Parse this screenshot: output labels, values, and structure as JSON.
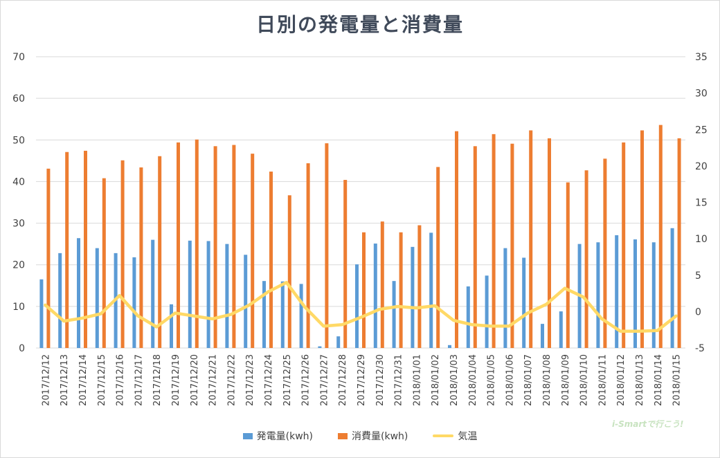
{
  "title": "日別の発電量と消費量",
  "watermark": "i-Smartで行こう!",
  "colors": {
    "generation": "#5b9bd5",
    "consumption": "#ed7d31",
    "temperature": "#ffd966",
    "grid": "#d9d9d9",
    "axis_text": "#404040"
  },
  "chart_data": {
    "type": "bar",
    "title": "日別の発電量と消費量",
    "categories": [
      "2017/12/12",
      "2017/12/13",
      "2017/12/14",
      "2017/12/15",
      "2017/12/16",
      "2017/12/17",
      "2017/12/18",
      "2017/12/19",
      "2017/12/20",
      "2017/12/21",
      "2017/12/22",
      "2017/12/23",
      "2017/12/24",
      "2017/12/25",
      "2017/12/26",
      "2017/12/27",
      "2017/12/28",
      "2017/12/29",
      "2017/12/30",
      "2017/12/31",
      "2018/01/01",
      "2018/01/02",
      "2018/01/03",
      "2018/01/04",
      "2018/01/05",
      "2018/01/06",
      "2018/01/07",
      "2018/01/08",
      "2018/01/09",
      "2018/01/10",
      "2018/01/11",
      "2018/01/12",
      "2018/01/13",
      "2018/01/14",
      "2018/01/15"
    ],
    "series": [
      {
        "name": "発電量(kwh)",
        "type": "bar",
        "axis": "left",
        "values": [
          16.5,
          22.8,
          26.4,
          24.0,
          22.8,
          21.8,
          26.0,
          10.5,
          25.8,
          25.7,
          25.0,
          22.4,
          16.1,
          16.0,
          15.4,
          0.4,
          2.8,
          20.1,
          25.1,
          16.1,
          24.3,
          27.7,
          0.7,
          14.8,
          17.4,
          24.0,
          21.7,
          5.8,
          8.8,
          25.0,
          25.4,
          27.1,
          26.1,
          25.4,
          28.8
        ]
      },
      {
        "name": "消費量(kwh)",
        "type": "bar",
        "axis": "left",
        "values": [
          43.1,
          47.1,
          47.4,
          40.8,
          45.1,
          43.4,
          46.1,
          49.4,
          50.1,
          48.5,
          48.8,
          46.7,
          42.4,
          36.7,
          44.4,
          49.2,
          40.4,
          27.8,
          30.4,
          27.8,
          29.5,
          43.5,
          52.1,
          48.5,
          51.4,
          49.1,
          52.3,
          50.4,
          39.8,
          42.7,
          45.5,
          49.4,
          52.3,
          53.6,
          50.4
        ]
      },
      {
        "name": "気温",
        "type": "line",
        "axis": "right",
        "values": [
          0.9,
          -1.3,
          -0.9,
          -0.3,
          2.2,
          -0.6,
          -2.1,
          -0.2,
          -0.6,
          -1.0,
          -0.4,
          0.9,
          2.7,
          4.0,
          0.6,
          -2.0,
          -1.8,
          -0.8,
          0.3,
          0.7,
          0.5,
          0.8,
          -1.2,
          -1.8,
          -2.0,
          -2.0,
          -0.2,
          1.0,
          3.2,
          2.0,
          -1.0,
          -2.7,
          -2.7,
          -2.6,
          -0.6
        ]
      }
    ],
    "y_left": {
      "ylim": [
        0,
        70
      ],
      "ticks": [
        "0",
        "10",
        "20",
        "30",
        "40",
        "50",
        "60",
        "70"
      ]
    },
    "y_right": {
      "ylim": [
        -5,
        35
      ],
      "ticks": [
        "-5",
        "0",
        "5",
        "10",
        "15",
        "20",
        "25",
        "30",
        "35"
      ]
    },
    "grid": true,
    "legend_position": "bottom"
  }
}
